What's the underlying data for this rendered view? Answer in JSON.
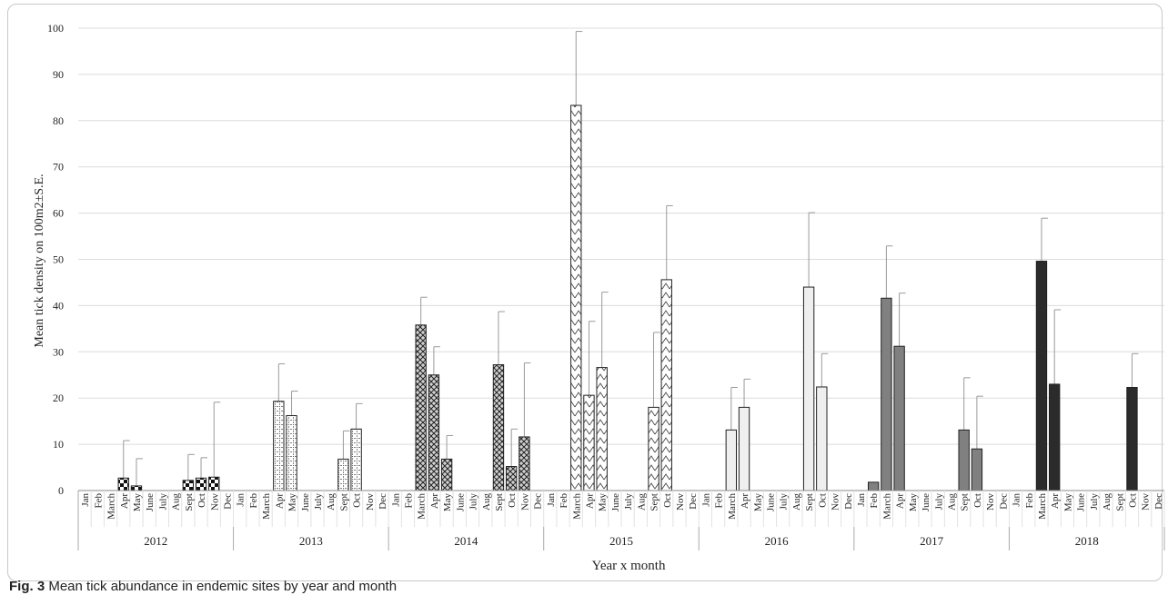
{
  "caption": {
    "label": "Fig. 3",
    "text": "Mean tick abundance in endemic sites by year and month"
  },
  "chart_data": {
    "type": "bar",
    "xlabel": "Year x month",
    "ylabel": "Mean tick density on 100m2±S.E.",
    "ylim": [
      0,
      100
    ],
    "yticks": [
      0,
      10,
      20,
      30,
      40,
      50,
      60,
      70,
      80,
      90,
      100
    ],
    "grid": true,
    "months": [
      "Jan",
      "Feb",
      "March",
      "Apr",
      "May",
      "June",
      "July",
      "Aug",
      "Sept",
      "Oct",
      "Nov",
      "Dec"
    ],
    "series": [
      {
        "year": "2012",
        "pattern": "checker",
        "values": [
          null,
          null,
          null,
          2.7,
          1.0,
          null,
          null,
          null,
          2.2,
          2.7,
          2.9,
          null
        ],
        "errors": [
          null,
          null,
          null,
          8.1,
          5.9,
          null,
          null,
          null,
          5.6,
          4.4,
          16.2,
          null
        ]
      },
      {
        "year": "2013",
        "pattern": "dotted-grid",
        "values": [
          null,
          null,
          null,
          19.3,
          16.2,
          null,
          null,
          null,
          6.8,
          13.3,
          null,
          null
        ],
        "errors": [
          null,
          null,
          null,
          8.1,
          5.3,
          null,
          null,
          null,
          6.1,
          5.5,
          null,
          null
        ]
      },
      {
        "year": "2014",
        "pattern": "crosshatch",
        "values": [
          null,
          null,
          35.8,
          25.0,
          6.8,
          null,
          null,
          null,
          27.2,
          5.2,
          11.6,
          null
        ],
        "errors": [
          null,
          null,
          6.0,
          6.1,
          5.1,
          null,
          null,
          null,
          11.5,
          8.1,
          16.0,
          null
        ]
      },
      {
        "year": "2015",
        "pattern": "zigzag",
        "values": [
          null,
          null,
          83.3,
          20.6,
          26.6,
          null,
          null,
          null,
          18.0,
          45.6,
          null,
          null
        ],
        "errors": [
          null,
          null,
          16.0,
          16.0,
          16.3,
          null,
          null,
          null,
          16.2,
          16.0,
          null,
          null
        ]
      },
      {
        "year": "2016",
        "pattern": "light",
        "values": [
          null,
          null,
          13.1,
          18.0,
          null,
          null,
          null,
          null,
          44.0,
          22.4,
          null,
          null
        ],
        "errors": [
          null,
          null,
          9.2,
          6.1,
          null,
          null,
          null,
          null,
          16.1,
          7.2,
          null,
          null
        ]
      },
      {
        "year": "2017",
        "pattern": "mid",
        "values": [
          null,
          1.8,
          41.6,
          31.2,
          null,
          null,
          null,
          null,
          13.1,
          9.0,
          null,
          null
        ],
        "errors": [
          null,
          null,
          11.3,
          11.5,
          null,
          null,
          null,
          null,
          11.3,
          11.4,
          null,
          null
        ]
      },
      {
        "year": "2018",
        "pattern": "dark",
        "values": [
          null,
          null,
          49.6,
          23.0,
          null,
          null,
          null,
          null,
          null,
          22.3,
          null,
          null
        ],
        "errors": [
          null,
          null,
          9.3,
          16.1,
          null,
          null,
          null,
          null,
          null,
          7.3,
          null,
          null
        ]
      }
    ]
  }
}
